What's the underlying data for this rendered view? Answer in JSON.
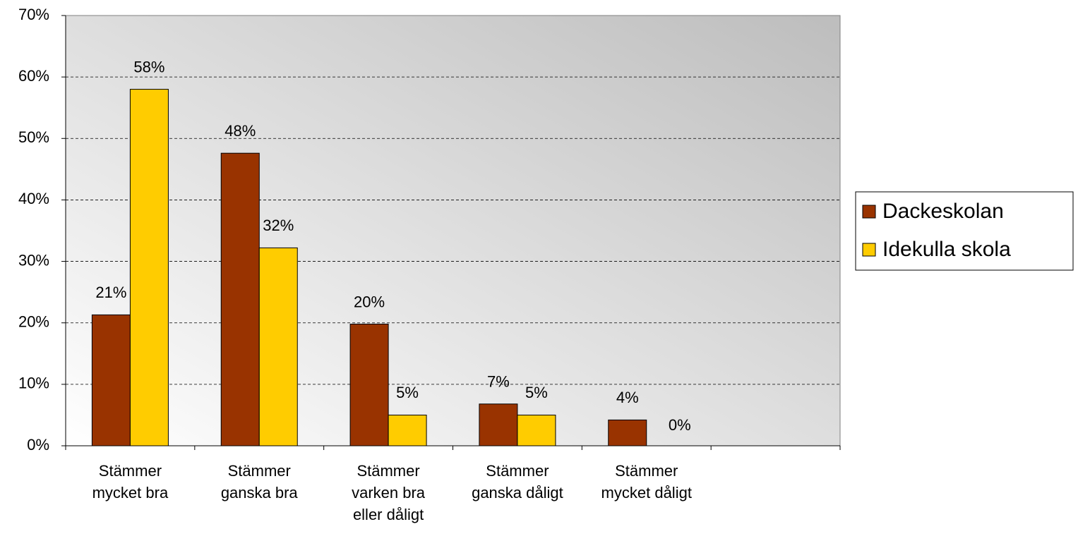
{
  "chart_data": {
    "type": "bar",
    "categories": [
      "Stämmer mycket bra",
      "Stämmer ganska bra",
      "Stämmer varken bra eller dåligt",
      "Stämmer ganska dåligt",
      "Stämmer mycket dåligt",
      null
    ],
    "series": [
      {
        "name": "Dackeskolan",
        "color": "#993300",
        "values": [
          21.3,
          47.6,
          19.8,
          6.8,
          4.2,
          null
        ],
        "value_labels": [
          "21%",
          "48%",
          "20%",
          "7%",
          "4%",
          null
        ]
      },
      {
        "name": "Idekulla skola",
        "color": "#ffcc00",
        "values": [
          58,
          32.2,
          5,
          5,
          0,
          null
        ],
        "value_labels": [
          "58%",
          "32%",
          "5%",
          "5%",
          "0%",
          null
        ]
      }
    ],
    "ylim": [
      0,
      70
    ],
    "yticks": [
      {
        "value": 0,
        "label": "0%"
      },
      {
        "value": 10,
        "label": "10%"
      },
      {
        "value": 20,
        "label": "20%"
      },
      {
        "value": 30,
        "label": "30%"
      },
      {
        "value": 40,
        "label": "40%"
      },
      {
        "value": 50,
        "label": "50%"
      },
      {
        "value": 60,
        "label": "60%"
      },
      {
        "value": 70,
        "label": "70%"
      }
    ],
    "grid": true,
    "legend": "right"
  }
}
